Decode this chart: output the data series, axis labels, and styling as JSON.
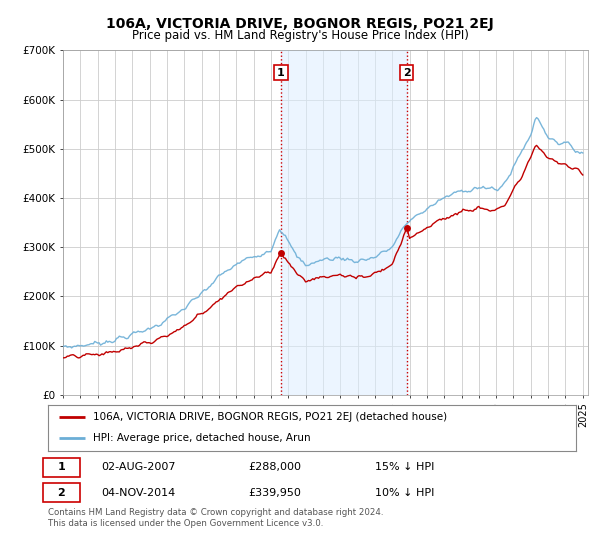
{
  "title": "106A, VICTORIA DRIVE, BOGNOR REGIS, PO21 2EJ",
  "subtitle": "Price paid vs. HM Land Registry's House Price Index (HPI)",
  "ylim": [
    0,
    700000
  ],
  "yticks": [
    0,
    100000,
    200000,
    300000,
    400000,
    500000,
    600000,
    700000
  ],
  "ytick_labels": [
    "£0",
    "£100K",
    "£200K",
    "£300K",
    "£400K",
    "£500K",
    "£600K",
    "£700K"
  ],
  "hpi_color": "#6baed6",
  "price_color": "#c00000",
  "sale1_year": 2007.58,
  "sale1_price": 288000,
  "sale2_year": 2014.83,
  "sale2_price": 339950,
  "legend_line1": "106A, VICTORIA DRIVE, BOGNOR REGIS, PO21 2EJ (detached house)",
  "legend_line2": "HPI: Average price, detached house, Arun",
  "sale1_date": "02-AUG-2007",
  "sale1_pct": "15% ↓ HPI",
  "sale2_date": "04-NOV-2014",
  "sale2_pct": "10% ↓ HPI",
  "footnote": "Contains HM Land Registry data © Crown copyright and database right 2024.\nThis data is licensed under the Open Government Licence v3.0.",
  "grid_color": "#cccccc",
  "bg_color": "#ffffff",
  "shade_color": "#ddeeff",
  "shade_alpha": 0.55
}
